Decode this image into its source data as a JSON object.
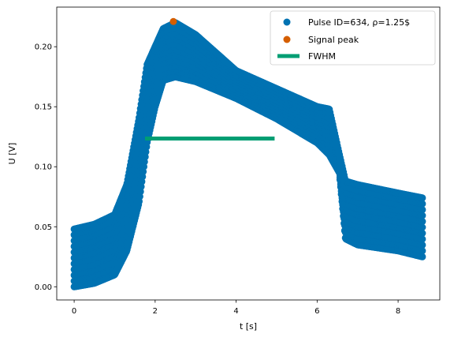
{
  "chart_data": {
    "type": "scatter",
    "xlabel": "t [s]",
    "ylabel": "U [V]",
    "xlim": [
      -0.43,
      9.03
    ],
    "ylim": [
      -0.011,
      0.233
    ],
    "xticks": [
      0,
      2,
      4,
      6,
      8
    ],
    "yticks": [
      0.0,
      0.05,
      0.1,
      0.15,
      0.2
    ],
    "xtick_labels": [
      "0",
      "2",
      "4",
      "6",
      "8"
    ],
    "ytick_labels": [
      "0.00",
      "0.05",
      "0.10",
      "0.15",
      "0.20"
    ],
    "legend_position": "top-right",
    "series": [
      {
        "name": "Pulse ID=634, ρ=1.25$",
        "kind": "scatter",
        "color": "#0072b2",
        "x_range": [
          0,
          8.6
        ],
        "envelope": {
          "t": [
            0.0,
            0.5,
            1.0,
            1.3,
            1.6,
            1.8,
            2.0,
            2.2,
            2.5,
            3.0,
            4.0,
            5.0,
            6.0,
            6.3,
            6.55,
            6.7,
            7.0,
            8.0,
            8.6
          ],
          "lower": [
            0.0,
            0.003,
            0.01,
            0.03,
            0.07,
            0.12,
            0.15,
            0.172,
            0.175,
            0.171,
            0.157,
            0.14,
            0.12,
            0.11,
            0.095,
            0.04,
            0.035,
            0.03,
            0.025
          ],
          "upper": [
            0.048,
            0.052,
            0.06,
            0.085,
            0.14,
            0.185,
            0.2,
            0.215,
            0.22,
            0.21,
            0.18,
            0.165,
            0.15,
            0.148,
            0.11,
            0.088,
            0.085,
            0.078,
            0.074
          ]
        }
      },
      {
        "name": "Signal peak",
        "kind": "point",
        "color": "#d55e00",
        "x": [
          2.45
        ],
        "y": [
          0.221
        ]
      },
      {
        "name": "FWHM",
        "kind": "line",
        "color": "#009e73",
        "x": [
          1.75,
          4.95
        ],
        "y": [
          0.1235,
          0.1235
        ]
      }
    ]
  }
}
